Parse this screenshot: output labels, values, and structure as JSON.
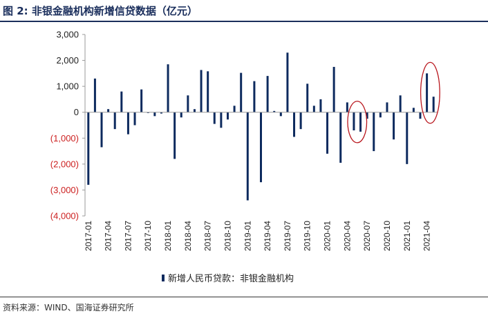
{
  "figure": {
    "title": "图 2:  非银金融机构新增信贷数据（亿元）",
    "source": "资料来源：WIND、国海证券研究所"
  },
  "colors": {
    "bar": "#0d2a5e",
    "positive_tick": "#222222",
    "negative_tick": "#cc1f1f",
    "highlight_ellipse": "#b8151c",
    "title": "#1a2e5c"
  },
  "chart_data": {
    "type": "bar",
    "title": "",
    "xlabel": "",
    "ylabel": "",
    "ylim": [
      -4000,
      3000
    ],
    "yticks": [
      3000,
      2000,
      1000,
      0,
      -1000,
      -2000,
      -3000,
      -4000
    ],
    "ytick_labels": [
      "3,000",
      "2,000",
      "1,000",
      "0",
      "(1,000)",
      "(2,000)",
      "(3,000)",
      "(4,000)"
    ],
    "xtick_labels": [
      "2017-01",
      "2017-04",
      "2017-07",
      "2017-10",
      "2018-01",
      "2018-04",
      "2018-07",
      "2018-10",
      "2019-01",
      "2019-04",
      "2019-07",
      "2019-10",
      "2020-01",
      "2020-04",
      "2020-07",
      "2020-10",
      "2021-01",
      "2021-04"
    ],
    "legend": [
      "新增人民币贷款：非银金融机构"
    ],
    "legend_position": "bottom",
    "categories": [
      "2017-01",
      "2017-02",
      "2017-03",
      "2017-04",
      "2017-05",
      "2017-06",
      "2017-07",
      "2017-08",
      "2017-09",
      "2017-10",
      "2017-11",
      "2017-12",
      "2018-01",
      "2018-02",
      "2018-03",
      "2018-04",
      "2018-05",
      "2018-06",
      "2018-07",
      "2018-08",
      "2018-09",
      "2018-10",
      "2018-11",
      "2018-12",
      "2019-01",
      "2019-02",
      "2019-03",
      "2019-04",
      "2019-05",
      "2019-06",
      "2019-07",
      "2019-08",
      "2019-09",
      "2019-10",
      "2019-11",
      "2019-12",
      "2020-01",
      "2020-02",
      "2020-03",
      "2020-04",
      "2020-05",
      "2020-06",
      "2020-07",
      "2020-08",
      "2020-09",
      "2020-10",
      "2020-11",
      "2020-12",
      "2021-01",
      "2021-02",
      "2021-03",
      "2021-04",
      "2021-05"
    ],
    "series": [
      {
        "name": "新增人民币贷款：非银金融机构",
        "values": [
          -2800,
          1300,
          -1350,
          120,
          -650,
          800,
          -850,
          -500,
          880,
          -30,
          -150,
          -50,
          1850,
          -1800,
          -200,
          650,
          120,
          1630,
          1580,
          -450,
          -600,
          -280,
          250,
          1520,
          -3400,
          1200,
          -2700,
          1400,
          50,
          -150,
          2300,
          -950,
          -650,
          1100,
          250,
          500,
          -1600,
          1750,
          -1950,
          380,
          -700,
          -750,
          -250,
          -1500,
          -200,
          380,
          -1050,
          650,
          -2000,
          170,
          -250,
          1500,
          600
        ]
      }
    ],
    "highlights": [
      {
        "label": "2020-05 to 2020-06 dip",
        "from": "2020-05",
        "to": "2020-06"
      },
      {
        "label": "2021-04 to 2021-05 rebound",
        "from": "2021-04",
        "to": "2021-05"
      }
    ]
  }
}
